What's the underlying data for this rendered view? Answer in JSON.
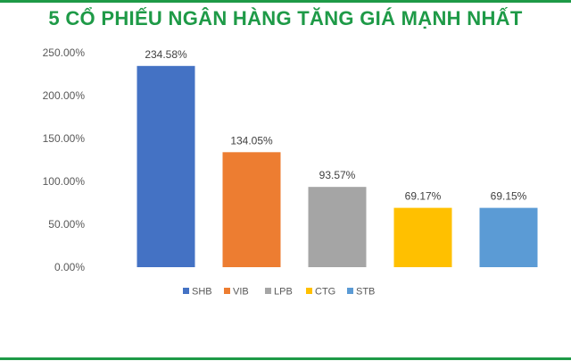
{
  "colors": {
    "title": "#1e9a47",
    "rule": "#1e9a47",
    "text": "#595959",
    "SHB": "#4472c4",
    "VIB": "#ed7d31",
    "LPB": "#a5a5a5",
    "CTG": "#ffc000",
    "STB": "#5b9bd5"
  },
  "chart_data": {
    "type": "bar",
    "title": "5 CỔ PHIẾU NGÂN HÀNG TĂNG GIÁ MẠNH NHẤT",
    "xlabel": "",
    "ylabel": "",
    "categories": [
      "SHB",
      "VIB",
      "LPB",
      "CTG",
      "STB"
    ],
    "values": [
      234.58,
      134.05,
      93.57,
      69.17,
      69.15
    ],
    "data_labels": [
      "234.58%",
      "134.05%",
      "93.57%",
      "69.17%",
      "69.15%"
    ],
    "ylim": [
      0,
      250
    ],
    "yticks": [
      0,
      50,
      100,
      150,
      200,
      250
    ],
    "ytick_labels": [
      "0.00%",
      "50.00%",
      "100.00%",
      "150.00%",
      "200.00%",
      "250.00%"
    ],
    "grid": false,
    "legend": {
      "position": "bottom",
      "entries": [
        "SHB",
        "VIB",
        "LPB",
        "CTG",
        "STB"
      ]
    }
  }
}
